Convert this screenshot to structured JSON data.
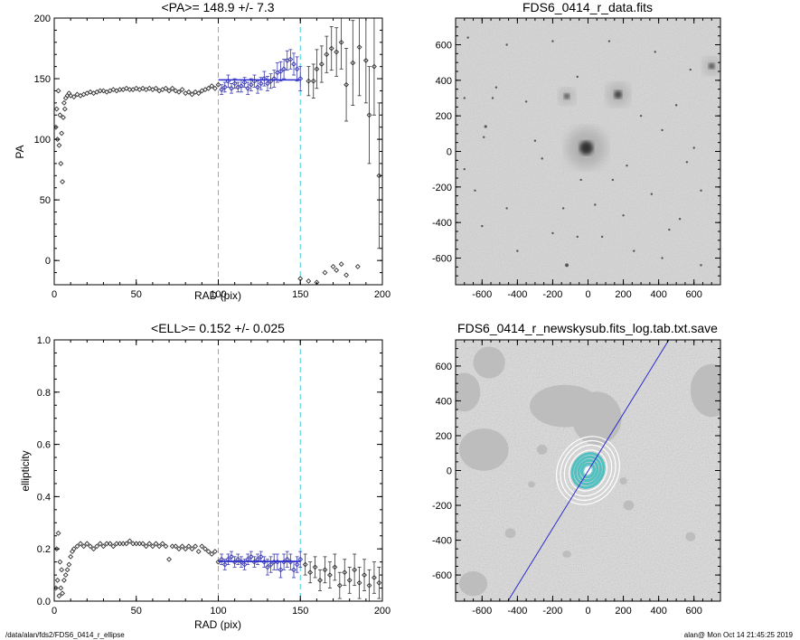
{
  "footer": {
    "path": "/data/alan/fds2/FDS6_0414_r_ellipse",
    "stamp": "alan@  Mon Oct 14 21:45:25 2019"
  },
  "colors": {
    "axes": "#000000",
    "data_points": "#333333",
    "fit_points": "#3a3ab0",
    "fit_line": "#2a2ad0",
    "range_markers": "#40d0e0",
    "image_gray": "#cfcfcf",
    "mask_gray": "#bdbdbd",
    "ellipse_overlay": "#50c0c0"
  },
  "chart_data": [
    {
      "id": "pa",
      "type": "scatter",
      "title": "<PA>= 148.9 +/-   7.3",
      "xlabel": "RAD (pix)",
      "ylabel": "PA",
      "xlim": [
        0,
        200
      ],
      "ylim": [
        -20,
        200
      ],
      "xticks": [
        0,
        50,
        100,
        150,
        200
      ],
      "yticks": [
        0,
        50,
        100,
        150,
        200
      ],
      "vlines": [
        100,
        150
      ],
      "fit_line": {
        "x": [
          100,
          150
        ],
        "y": 149
      },
      "points": [
        [
          1,
          110
        ],
        [
          1.5,
          125
        ],
        [
          2,
          100
        ],
        [
          2.5,
          140
        ],
        [
          3,
          95
        ],
        [
          3.5,
          120
        ],
        [
          4,
          80
        ],
        [
          4.5,
          105
        ],
        [
          5,
          65
        ],
        [
          5.5,
          118
        ],
        [
          6,
          130
        ],
        [
          6.5,
          125
        ],
        [
          7,
          134
        ],
        [
          8,
          136
        ],
        [
          9,
          138
        ],
        [
          10,
          136
        ],
        [
          12,
          135
        ],
        [
          14,
          137
        ],
        [
          16,
          136
        ],
        [
          18,
          137
        ],
        [
          20,
          138
        ],
        [
          22,
          139
        ],
        [
          24,
          138
        ],
        [
          26,
          139
        ],
        [
          28,
          140
        ],
        [
          30,
          140
        ],
        [
          32,
          139
        ],
        [
          34,
          140
        ],
        [
          36,
          141
        ],
        [
          38,
          140
        ],
        [
          40,
          141
        ],
        [
          42,
          141
        ],
        [
          44,
          142
        ],
        [
          46,
          141
        ],
        [
          48,
          141
        ],
        [
          50,
          142
        ],
        [
          52,
          141
        ],
        [
          54,
          142
        ],
        [
          56,
          141
        ],
        [
          58,
          142
        ],
        [
          60,
          141
        ],
        [
          62,
          142
        ],
        [
          64,
          140
        ],
        [
          66,
          141
        ],
        [
          68,
          142
        ],
        [
          70,
          140
        ],
        [
          72,
          142
        ],
        [
          74,
          140
        ],
        [
          76,
          139
        ],
        [
          78,
          141
        ],
        [
          80,
          138
        ],
        [
          82,
          139
        ],
        [
          84,
          137
        ],
        [
          86,
          139
        ],
        [
          88,
          138
        ],
        [
          90,
          140
        ],
        [
          92,
          141
        ],
        [
          94,
          142
        ],
        [
          96,
          144
        ],
        [
          98,
          142
        ],
        [
          100,
          145
        ],
        [
          150,
          -15
        ],
        [
          155,
          -17
        ],
        [
          160,
          -18
        ],
        [
          165,
          -10
        ],
        [
          170,
          -5
        ],
        [
          172,
          -8
        ],
        [
          175,
          -3
        ],
        [
          178,
          -12
        ],
        [
          185,
          -5
        ]
      ],
      "points_err": [
        [
          102,
          141,
          4
        ],
        [
          104,
          143,
          4
        ],
        [
          106,
          148,
          5
        ],
        [
          108,
          142,
          4
        ],
        [
          110,
          146,
          4
        ],
        [
          112,
          143,
          4
        ],
        [
          114,
          144,
          5
        ],
        [
          116,
          147,
          4
        ],
        [
          118,
          142,
          5
        ],
        [
          120,
          145,
          5
        ],
        [
          122,
          148,
          5
        ],
        [
          124,
          143,
          5
        ],
        [
          126,
          146,
          5
        ],
        [
          128,
          150,
          6
        ],
        [
          130,
          146,
          6
        ],
        [
          132,
          148,
          6
        ],
        [
          134,
          150,
          7
        ],
        [
          136,
          155,
          8
        ],
        [
          138,
          156,
          8
        ],
        [
          140,
          158,
          8
        ],
        [
          142,
          165,
          8
        ],
        [
          144,
          166,
          8
        ],
        [
          146,
          162,
          9
        ],
        [
          148,
          158,
          10
        ],
        [
          150,
          150,
          10
        ],
        [
          155,
          148,
          12
        ],
        [
          158,
          148,
          14
        ],
        [
          160,
          158,
          16
        ],
        [
          163,
          162,
          15
        ],
        [
          166,
          170,
          15
        ],
        [
          169,
          175,
          18
        ],
        [
          172,
          172,
          20
        ],
        [
          175,
          180,
          22
        ],
        [
          178,
          145,
          30
        ],
        [
          182,
          163,
          35
        ],
        [
          186,
          176,
          40
        ],
        [
          190,
          165,
          35
        ],
        [
          192,
          120,
          40
        ],
        [
          195,
          160,
          40
        ],
        [
          198,
          70,
          60
        ]
      ]
    },
    {
      "id": "ell",
      "type": "scatter",
      "title": "<ELL>= 0.152 +/-  0.025",
      "xlabel": "RAD (pix)",
      "ylabel": "ellipticity",
      "xlim": [
        0,
        200
      ],
      "ylim": [
        0,
        1.0
      ],
      "xticks": [
        0,
        50,
        100,
        150,
        200
      ],
      "yticks": [
        0.0,
        0.2,
        0.4,
        0.6,
        0.8,
        1.0
      ],
      "vlines": [
        100,
        150
      ],
      "fit_line": {
        "x": [
          100,
          150
        ],
        "y": 0.152
      },
      "points": [
        [
          1,
          0.05
        ],
        [
          1.5,
          0.2
        ],
        [
          2,
          0.08
        ],
        [
          2.5,
          0.26
        ],
        [
          3,
          0.02
        ],
        [
          3.5,
          0.15
        ],
        [
          4,
          0.05
        ],
        [
          4.5,
          0.12
        ],
        [
          5,
          0.03
        ],
        [
          6,
          0.08
        ],
        [
          7,
          0.1
        ],
        [
          8,
          0.12
        ],
        [
          9,
          0.14
        ],
        [
          10,
          0.17
        ],
        [
          11,
          0.19
        ],
        [
          12,
          0.2
        ],
        [
          14,
          0.21
        ],
        [
          16,
          0.22
        ],
        [
          18,
          0.21
        ],
        [
          20,
          0.22
        ],
        [
          22,
          0.21
        ],
        [
          24,
          0.2
        ],
        [
          26,
          0.21
        ],
        [
          28,
          0.22
        ],
        [
          30,
          0.21
        ],
        [
          32,
          0.22
        ],
        [
          34,
          0.22
        ],
        [
          36,
          0.21
        ],
        [
          38,
          0.22
        ],
        [
          40,
          0.22
        ],
        [
          42,
          0.22
        ],
        [
          44,
          0.22
        ],
        [
          46,
          0.23
        ],
        [
          48,
          0.22
        ],
        [
          50,
          0.22
        ],
        [
          52,
          0.22
        ],
        [
          54,
          0.22
        ],
        [
          56,
          0.21
        ],
        [
          58,
          0.22
        ],
        [
          60,
          0.21
        ],
        [
          62,
          0.22
        ],
        [
          64,
          0.21
        ],
        [
          66,
          0.22
        ],
        [
          68,
          0.21
        ],
        [
          70,
          0.16
        ],
        [
          72,
          0.21
        ],
        [
          74,
          0.21
        ],
        [
          76,
          0.2
        ],
        [
          78,
          0.21
        ],
        [
          80,
          0.2
        ],
        [
          82,
          0.21
        ],
        [
          84,
          0.2
        ],
        [
          86,
          0.21
        ],
        [
          88,
          0.19
        ],
        [
          90,
          0.21
        ],
        [
          92,
          0.2
        ],
        [
          94,
          0.19
        ],
        [
          96,
          0.18
        ],
        [
          98,
          0.19
        ],
        [
          100,
          0.15
        ]
      ],
      "points_err": [
        [
          102,
          0.16,
          0.02
        ],
        [
          104,
          0.14,
          0.02
        ],
        [
          106,
          0.16,
          0.02
        ],
        [
          108,
          0.17,
          0.02
        ],
        [
          110,
          0.15,
          0.02
        ],
        [
          112,
          0.16,
          0.02
        ],
        [
          114,
          0.15,
          0.02
        ],
        [
          116,
          0.14,
          0.02
        ],
        [
          118,
          0.16,
          0.02
        ],
        [
          120,
          0.17,
          0.02
        ],
        [
          122,
          0.15,
          0.02
        ],
        [
          124,
          0.16,
          0.02
        ],
        [
          126,
          0.17,
          0.02
        ],
        [
          128,
          0.15,
          0.02
        ],
        [
          130,
          0.13,
          0.03
        ],
        [
          132,
          0.14,
          0.03
        ],
        [
          134,
          0.15,
          0.03
        ],
        [
          136,
          0.15,
          0.03
        ],
        [
          138,
          0.12,
          0.03
        ],
        [
          140,
          0.15,
          0.03
        ],
        [
          142,
          0.16,
          0.03
        ],
        [
          144,
          0.15,
          0.03
        ],
        [
          146,
          0.12,
          0.03
        ],
        [
          148,
          0.14,
          0.03
        ],
        [
          150,
          0.16,
          0.03
        ],
        [
          153,
          0.14,
          0.04
        ],
        [
          156,
          0.11,
          0.04
        ],
        [
          159,
          0.13,
          0.04
        ],
        [
          162,
          0.08,
          0.04
        ],
        [
          165,
          0.12,
          0.05
        ],
        [
          168,
          0.1,
          0.05
        ],
        [
          171,
          0.13,
          0.05
        ],
        [
          174,
          0.06,
          0.05
        ],
        [
          177,
          0.11,
          0.05
        ],
        [
          180,
          0.08,
          0.05
        ],
        [
          183,
          0.12,
          0.06
        ],
        [
          186,
          0.07,
          0.06
        ],
        [
          189,
          0.1,
          0.06
        ],
        [
          192,
          0.06,
          0.06
        ],
        [
          195,
          0.09,
          0.06
        ],
        [
          198,
          0.07,
          0.06
        ]
      ]
    },
    {
      "id": "img1",
      "type": "heatmap",
      "title": "FDS6_0414_r_data.fits",
      "xlim": [
        -750,
        750
      ],
      "ylim": [
        -750,
        750
      ],
      "xticks": [
        -600,
        -400,
        -200,
        0,
        200,
        400,
        600
      ],
      "yticks": [
        -600,
        -400,
        -200,
        0,
        200,
        400,
        600
      ],
      "sources": [
        [
          -120,
          310,
          28
        ],
        [
          -10,
          20,
          70
        ],
        [
          170,
          320,
          40
        ],
        [
          700,
          480,
          30
        ],
        [
          -580,
          140,
          18
        ],
        [
          -590,
          80,
          14
        ],
        [
          -540,
          300,
          10
        ],
        [
          -520,
          360,
          8
        ],
        [
          -60,
          420,
          10
        ],
        [
          -350,
          280,
          8
        ],
        [
          -680,
          640,
          7
        ],
        [
          -300,
          60,
          8
        ],
        [
          -260,
          -40,
          6
        ],
        [
          -460,
          -320,
          9
        ],
        [
          -200,
          -460,
          7
        ],
        [
          -120,
          -640,
          22
        ],
        [
          -60,
          -480,
          9
        ],
        [
          -40,
          -160,
          7
        ],
        [
          140,
          -160,
          8
        ],
        [
          220,
          -80,
          6
        ],
        [
          300,
          200,
          8
        ],
        [
          420,
          120,
          9
        ],
        [
          500,
          260,
          7
        ],
        [
          580,
          460,
          8
        ],
        [
          560,
          -60,
          10
        ],
        [
          520,
          -380,
          9
        ],
        [
          640,
          -220,
          7
        ],
        [
          640,
          -640,
          14
        ],
        [
          420,
          -600,
          9
        ],
        [
          260,
          -560,
          11
        ],
        [
          200,
          -360,
          7
        ],
        [
          80,
          -480,
          6
        ],
        [
          -400,
          -560,
          7
        ],
        [
          -600,
          -420,
          8
        ],
        [
          -700,
          -100,
          6
        ],
        [
          -640,
          -220,
          7
        ],
        [
          -700,
          300,
          8
        ],
        [
          380,
          560,
          8
        ],
        [
          120,
          620,
          7
        ],
        [
          -200,
          620,
          9
        ],
        [
          600,
          20,
          12
        ],
        [
          360,
          -240,
          7
        ],
        [
          -140,
          -320,
          6
        ],
        [
          40,
          -300,
          8
        ],
        [
          -460,
          600,
          7
        ],
        [
          460,
          -440,
          6
        ]
      ]
    },
    {
      "id": "img2",
      "type": "heatmap",
      "title": "FDS6_0414_r_newskysub.fits_log.tab.txt.save",
      "xlim": [
        -750,
        750
      ],
      "ylim": [
        -750,
        750
      ],
      "xticks": [
        -600,
        -400,
        -200,
        0,
        200,
        400,
        600
      ],
      "yticks": [
        -600,
        -400,
        -200,
        0,
        200,
        400,
        600
      ],
      "masks": [
        [
          -130,
          370,
          200,
          120
        ],
        [
          50,
          300,
          140,
          150
        ],
        [
          700,
          460,
          120,
          150
        ],
        [
          -590,
          120,
          140,
          120
        ],
        [
          -700,
          450,
          90,
          110
        ],
        [
          -560,
          620,
          90,
          90
        ],
        [
          -650,
          -650,
          80,
          70
        ],
        [
          -440,
          -360,
          30,
          28
        ],
        [
          230,
          -200,
          30,
          28
        ],
        [
          -120,
          -480,
          25,
          20
        ],
        [
          -260,
          120,
          30,
          28
        ],
        [
          580,
          -380,
          28,
          26
        ],
        [
          -320,
          -80,
          20,
          18
        ],
        [
          200,
          -60,
          22,
          20
        ]
      ],
      "pa_line": {
        "x": [
          -460,
          470
        ],
        "y": [
          -760,
          770
        ]
      },
      "ellipse_pa_deg": 149,
      "ellipse_ell": 0.15,
      "ellipse_radii": [
        20,
        40,
        60,
        80,
        100,
        120,
        150,
        175,
        200
      ]
    }
  ]
}
